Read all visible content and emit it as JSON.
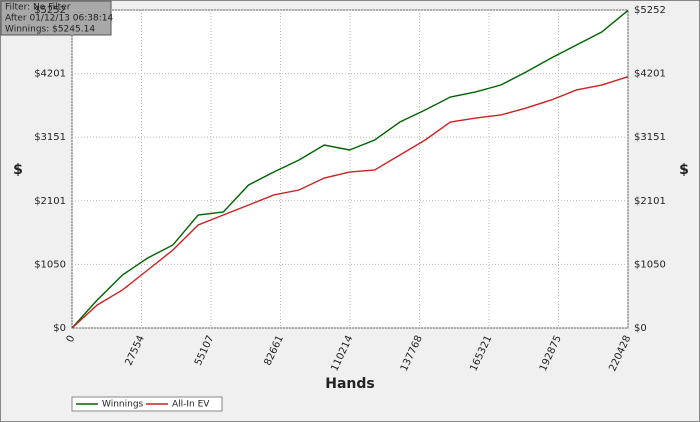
{
  "chart_data": {
    "type": "line",
    "annotations": [
      "Filter: No Filter",
      "After 01/12/13 06:38:14",
      "Winnings: $5245.14"
    ],
    "x_label": "Hands",
    "y_label": "$",
    "x": [
      0,
      10000,
      20000,
      30000,
      40000,
      50000,
      60000,
      70000,
      80000,
      90000,
      100000,
      110000,
      120000,
      130000,
      140000,
      150000,
      160000,
      170000,
      180000,
      190000,
      200000,
      210000,
      220428
    ],
    "series": [
      {
        "name": "Winnings",
        "color": "#006400",
        "values": [
          0,
          462,
          875,
          1156,
          1371,
          1866,
          1916,
          2362,
          2576,
          2775,
          3022,
          2940,
          3105,
          3402,
          3600,
          3815,
          3898,
          4013,
          4228,
          4459,
          4674,
          4889,
          5245.14
        ]
      },
      {
        "name": "All-In EV",
        "color": "#cc2222",
        "values": [
          0,
          380,
          628,
          958,
          1288,
          1701,
          1866,
          2031,
          2197,
          2279,
          2477,
          2576,
          2610,
          2857,
          3105,
          3402,
          3468,
          3518,
          3633,
          3766,
          3931,
          4013,
          4150
        ]
      }
    ],
    "xlim": [
      0,
      220428
    ],
    "xticks": [
      0,
      27554,
      55107,
      82661,
      110214,
      137768,
      165321,
      192875,
      220428
    ],
    "ylim": [
      0,
      5252
    ],
    "yticks": [
      {
        "value": 0,
        "label": "$0"
      },
      {
        "value": 1050,
        "label": "$1050"
      },
      {
        "value": 2101,
        "label": "$2101"
      },
      {
        "value": 3151,
        "label": "$3151"
      },
      {
        "value": 4201,
        "label": "$4201"
      },
      {
        "value": 5252,
        "label": "$5252"
      }
    ],
    "grid": true,
    "legend": "bottom-left"
  }
}
